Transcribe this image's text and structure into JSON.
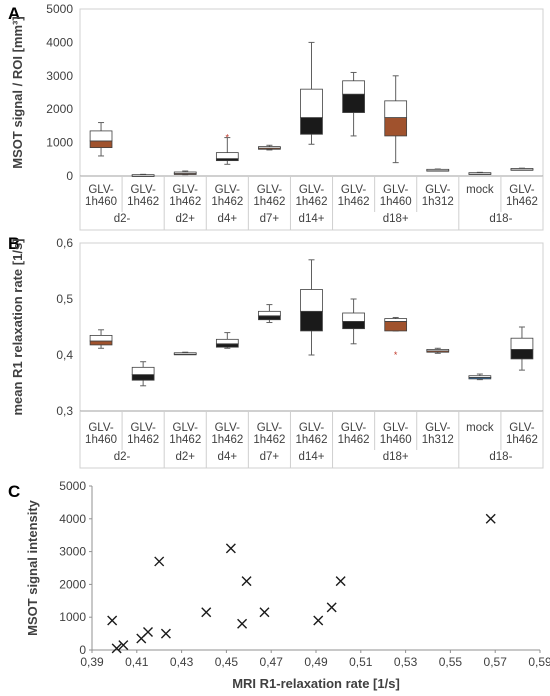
{
  "chart_data": [
    {
      "panel_label": "A",
      "type": "boxplot",
      "ylabel": "MSOT signal / ROI [mm³]",
      "ylim": [
        0,
        5000
      ],
      "yticks": [
        0,
        1000,
        2000,
        3000,
        4000,
        5000
      ],
      "yticklabels": [
        "0",
        "1000",
        "2000",
        "3000",
        "4000",
        "5000"
      ],
      "categories": [
        [
          "GLV-",
          "1h460"
        ],
        [
          "GLV-",
          "1h462"
        ],
        [
          "GLV-",
          "1h462"
        ],
        [
          "GLV-",
          "1h462"
        ],
        [
          "GLV-",
          "1h462"
        ],
        [
          "GLV-",
          "1h462"
        ],
        [
          "GLV-",
          "1h462"
        ],
        [
          "GLV-",
          "1h460"
        ],
        [
          "GLV-",
          "1h312"
        ],
        [
          "mock",
          ""
        ],
        [
          "GLV-",
          "1h462"
        ]
      ],
      "groups": [
        {
          "label": "d2-",
          "span": [
            0,
            1
          ]
        },
        {
          "label": "d2+",
          "span": [
            2,
            2
          ]
        },
        {
          "label": "d4+",
          "span": [
            3,
            3
          ]
        },
        {
          "label": "d7+",
          "span": [
            4,
            4
          ]
        },
        {
          "label": "d14+",
          "span": [
            5,
            5
          ]
        },
        {
          "label": "d18+",
          "span": [
            6,
            8
          ]
        },
        {
          "label": "d18-",
          "span": [
            9,
            10
          ]
        }
      ],
      "boxes": [
        {
          "min": 600,
          "q1": 850,
          "median": 1050,
          "q3": 1350,
          "max": 1600,
          "color": "#A0522D"
        },
        {
          "min": 10,
          "q1": 20,
          "median": 30,
          "q3": 40,
          "max": 50,
          "color": "#A0522D"
        },
        {
          "min": 40,
          "q1": 60,
          "median": 90,
          "q3": 120,
          "max": 150,
          "color": "#A0522D"
        },
        {
          "min": 350,
          "q1": 460,
          "median": 520,
          "q3": 700,
          "max": 1150,
          "color": "#1a1a1a",
          "outliers": [
            1150
          ]
        },
        {
          "min": 780,
          "q1": 800,
          "median": 850,
          "q3": 880,
          "max": 920,
          "color": "#A0522D"
        },
        {
          "min": 950,
          "q1": 1250,
          "median": 1750,
          "q3": 2600,
          "max": 4000,
          "color": "#1a1a1a"
        },
        {
          "min": 1200,
          "q1": 1900,
          "median": 2450,
          "q3": 2850,
          "max": 3100,
          "color": "#1a1a1a"
        },
        {
          "min": 400,
          "q1": 1200,
          "median": 1750,
          "q3": 2250,
          "max": 3000,
          "color": "#A0522D"
        },
        {
          "min": 160,
          "q1": 180,
          "median": 190,
          "q3": 200,
          "max": 210,
          "color": "#A0522D"
        },
        {
          "min": 60,
          "q1": 80,
          "median": 90,
          "q3": 100,
          "max": 110,
          "color": "#A0522D"
        },
        {
          "min": 190,
          "q1": 205,
          "median": 215,
          "q3": 225,
          "max": 235,
          "color": "#A0522D"
        }
      ]
    },
    {
      "panel_label": "B",
      "type": "boxplot",
      "ylabel": "mean R1 relaxation rate [1/s]",
      "ylim": [
        0.3,
        0.6
      ],
      "yticks": [
        0.3,
        0.4,
        0.5,
        0.6
      ],
      "yticklabels": [
        "0,3",
        "0,4",
        "0,5",
        "0,6"
      ],
      "categories": [
        [
          "GLV-",
          "1h460"
        ],
        [
          "GLV-",
          "1h462"
        ],
        [
          "GLV-",
          "1h462"
        ],
        [
          "GLV-",
          "1h462"
        ],
        [
          "GLV-",
          "1h462"
        ],
        [
          "GLV-",
          "1h462"
        ],
        [
          "GLV-",
          "1h462"
        ],
        [
          "GLV-",
          "1h460"
        ],
        [
          "GLV-",
          "1h312"
        ],
        [
          "mock",
          ""
        ],
        [
          "GLV-",
          "1h462"
        ]
      ],
      "groups": [
        {
          "label": "d2-",
          "span": [
            0,
            1
          ]
        },
        {
          "label": "d2+",
          "span": [
            2,
            2
          ]
        },
        {
          "label": "d4+",
          "span": [
            3,
            3
          ]
        },
        {
          "label": "d7+",
          "span": [
            4,
            4
          ]
        },
        {
          "label": "d14+",
          "span": [
            5,
            5
          ]
        },
        {
          "label": "d18+",
          "span": [
            6,
            8
          ]
        },
        {
          "label": "d18-",
          "span": [
            9,
            10
          ]
        }
      ],
      "boxes": [
        {
          "min": 0.412,
          "q1": 0.418,
          "median": 0.425,
          "q3": 0.435,
          "max": 0.445,
          "color": "#A0522D"
        },
        {
          "min": 0.345,
          "q1": 0.355,
          "median": 0.365,
          "q3": 0.378,
          "max": 0.388,
          "color": "#1a1a1a"
        },
        {
          "min": 0.401,
          "q1": 0.402,
          "median": 0.403,
          "q3": 0.404,
          "max": 0.405,
          "color": "#A0522D"
        },
        {
          "min": 0.412,
          "q1": 0.414,
          "median": 0.42,
          "q3": 0.428,
          "max": 0.44,
          "color": "#1a1a1a"
        },
        {
          "min": 0.458,
          "q1": 0.463,
          "median": 0.47,
          "q3": 0.478,
          "max": 0.49,
          "color": "#1a1a1a"
        },
        {
          "min": 0.4,
          "q1": 0.443,
          "median": 0.478,
          "q3": 0.517,
          "max": 0.57,
          "color": "#1a1a1a"
        },
        {
          "min": 0.42,
          "q1": 0.447,
          "median": 0.46,
          "q3": 0.475,
          "max": 0.5,
          "color": "#1a1a1a"
        },
        {
          "min": 0.443,
          "q1": 0.443,
          "median": 0.46,
          "q3": 0.465,
          "max": 0.467,
          "color": "#A0522D",
          "outliers": [
            0.4
          ]
        },
        {
          "min": 0.403,
          "q1": 0.405,
          "median": 0.408,
          "q3": 0.41,
          "max": 0.412,
          "color": "#A0522D"
        },
        {
          "min": 0.356,
          "q1": 0.358,
          "median": 0.36,
          "q3": 0.363,
          "max": 0.366,
          "color": "#2E75B6"
        },
        {
          "min": 0.373,
          "q1": 0.393,
          "median": 0.41,
          "q3": 0.43,
          "max": 0.45,
          "color": "#1a1a1a"
        }
      ]
    },
    {
      "panel_label": "C",
      "type": "scatter",
      "xlabel": "MRI R1-relaxation rate [1/s]",
      "ylabel": "MSOT signal intensity",
      "xlim": [
        0.39,
        0.59
      ],
      "ylim": [
        0,
        5000
      ],
      "xticks": [
        0.39,
        0.41,
        0.43,
        0.45,
        0.47,
        0.49,
        0.51,
        0.53,
        0.55,
        0.57,
        0.59
      ],
      "xticklabels": [
        "0,39",
        "0,41",
        "0,43",
        "0,45",
        "0,47",
        "0,49",
        "0,51",
        "0,53",
        "0,55",
        "0,57",
        "0,59"
      ],
      "yticks": [
        0,
        1000,
        2000,
        3000,
        4000,
        5000
      ],
      "yticklabels": [
        "0",
        "1000",
        "2000",
        "3000",
        "4000",
        "5000"
      ],
      "x": [
        0.399,
        0.401,
        0.404,
        0.412,
        0.415,
        0.42,
        0.423,
        0.441,
        0.452,
        0.457,
        0.459,
        0.467,
        0.491,
        0.497,
        0.501,
        0.568
      ],
      "y": [
        900,
        50,
        150,
        350,
        550,
        2700,
        500,
        1150,
        3100,
        800,
        2100,
        1150,
        900,
        1300,
        2100,
        4000
      ],
      "marker": "x"
    }
  ]
}
